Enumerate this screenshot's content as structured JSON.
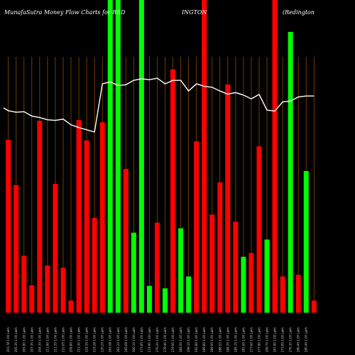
{
  "chart_data": {
    "type": "bar",
    "title_left": "MunafaSutra  Money Flow  Charts for RED",
    "title_mid": "INGTON",
    "title_right": "(Redington",
    "colors": {
      "up": "#00ff00",
      "down": "#ff0000",
      "line": "#ffffff",
      "grid": "#8a4a00",
      "background": "#000000"
    },
    "ylim": [
      0,
      100
    ],
    "categories": [
      "203.78 1.00 Lakh",
      "205.35 1.00 Lakh",
      "205.90 1.00 Lakh",
      "207.35 1.00 Lakh",
      "204.30 1.00 Lakh",
      "211.90 1.00 Lakh",
      "211.35 1.00 Lakh",
      "210.05 1.00 Lakh",
      "209.80 1.00 Lakh",
      "215.30 1.00 Lakh",
      "218.35 1.00 Lakh",
      "219.28 1.00 Lakh",
      "220.25 1.00 Lakh",
      "263.58 1.00 Lakh",
      "262.20 1.00 Lakh",
      "265.68 1.00 Lakh",
      "260.10 1.00 Lakh",
      "273.85 1.00 Lakh",
      "274.95 1.00 Lakh",
      "276.30 1.00 Lakh",
      "278.40 1.00 Lakh",
      "279.95 1.00 Lakh",
      "284.00 1.00 Lakh",
      "299.10 1.00 Lakh",
      "292.80 1.00 Lakh",
      "289.80 1.00 Lakh",
      "289.95 1.00 Lakh",
      "288.53 1.00 Lakh",
      "284.35 1.00 Lakh",
      "285.15 1.00 Lakh",
      "281.65 1.00 Lakh",
      "277.60 1.00 Lakh",
      "277.80 1.00 Lakh",
      "269.75 1.00 Lakh",
      "267.90 1.00 Lakh",
      "273.85 1.00 Lakh",
      "276.10 1.00 Lakh",
      "280.40 1.00 Lakh",
      "280.45 1.00 Lakh"
    ],
    "values": [
      55.3,
      40.8,
      18.2,
      8.8,
      61.4,
      15.1,
      41.2,
      14.4,
      3.9,
      61.6,
      55.1,
      30.3,
      60.9,
      100,
      100,
      46,
      25.6,
      100,
      8.6,
      28.8,
      7.8,
      77.8,
      27,
      11.6,
      54.8,
      100,
      31.4,
      41.7,
      73,
      29.1,
      17.9,
      19.1,
      53.2,
      23.4,
      100,
      11.6,
      89.8,
      12.1,
      45.3
    ],
    "directions": [
      "down",
      "down",
      "down",
      "down",
      "down",
      "down",
      "down",
      "down",
      "down",
      "down",
      "down",
      "down",
      "down",
      "up",
      "up",
      "down",
      "up",
      "up",
      "up",
      "down",
      "up",
      "down",
      "up",
      "up",
      "down",
      "down",
      "down",
      "down",
      "down",
      "down",
      "up",
      "down",
      "down",
      "up",
      "down",
      "down",
      "up",
      "down",
      "up"
    ],
    "extra_bar": {
      "value": 3.9,
      "direction": "down"
    },
    "line_values": [
      65.5,
      64.6,
      64.1,
      64.3,
      62.9,
      62.4,
      61.7,
      61.5,
      61.9,
      60.1,
      59.2,
      58.5,
      57.8,
      73.2,
      73.8,
      72.7,
      72.9,
      74.3,
      74.8,
      74.5,
      75.0,
      73.2,
      74.3,
      74.3,
      70.9,
      73.2,
      72.4,
      72.1,
      70.9,
      69.9,
      70.4,
      69.6,
      68.4,
      69.8,
      64.8,
      64.5,
      67.4,
      67.7,
      69.0,
      69.3
    ]
  }
}
